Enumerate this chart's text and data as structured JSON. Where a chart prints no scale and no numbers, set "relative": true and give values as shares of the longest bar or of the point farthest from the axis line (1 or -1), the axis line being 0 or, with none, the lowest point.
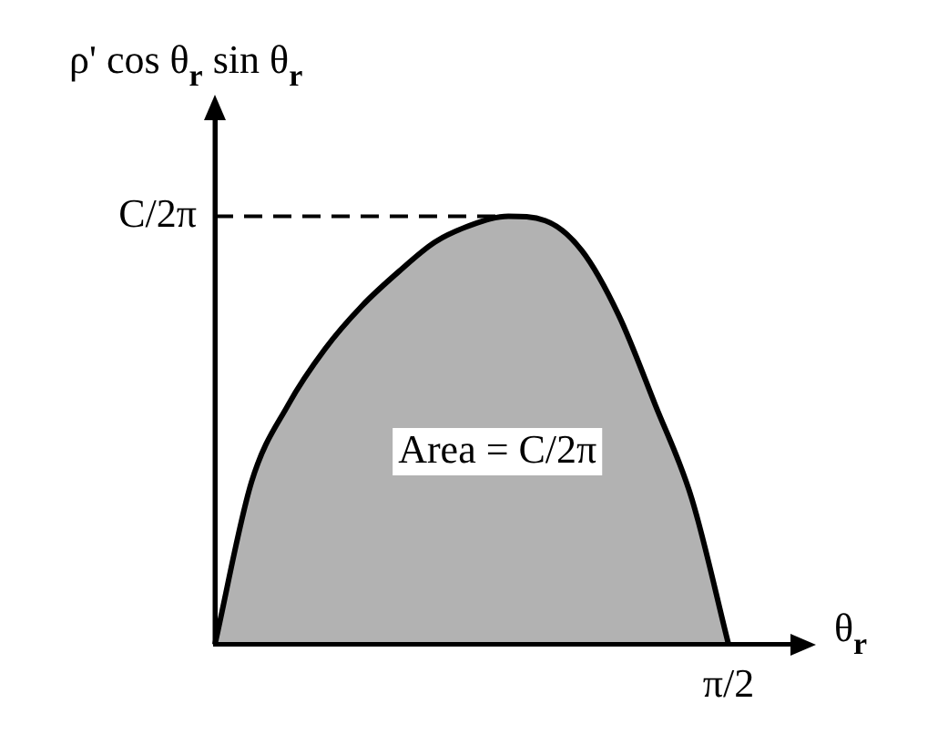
{
  "chart_data": {
    "type": "area",
    "ylabel": "ρ' cos θ$_{r}$ sin θ$_{r}$",
    "xlabel": "θ$_{r}$",
    "relative": true,
    "color": "#000000",
    "categories": [
      null,
      null,
      null,
      null,
      null,
      null,
      null,
      null,
      null,
      null,
      null,
      null,
      null,
      null,
      null
    ],
    "values": [
      0,
      0.38,
      0.56,
      0.69,
      0.79,
      0.87,
      0.94,
      0.98,
      1,
      0.99,
      0.92,
      0.77,
      0.56,
      0.34,
      0
    ],
    "annotations": [
      "C/2π",
      "Area = C/2π",
      "π/2"
    ]
  }
}
